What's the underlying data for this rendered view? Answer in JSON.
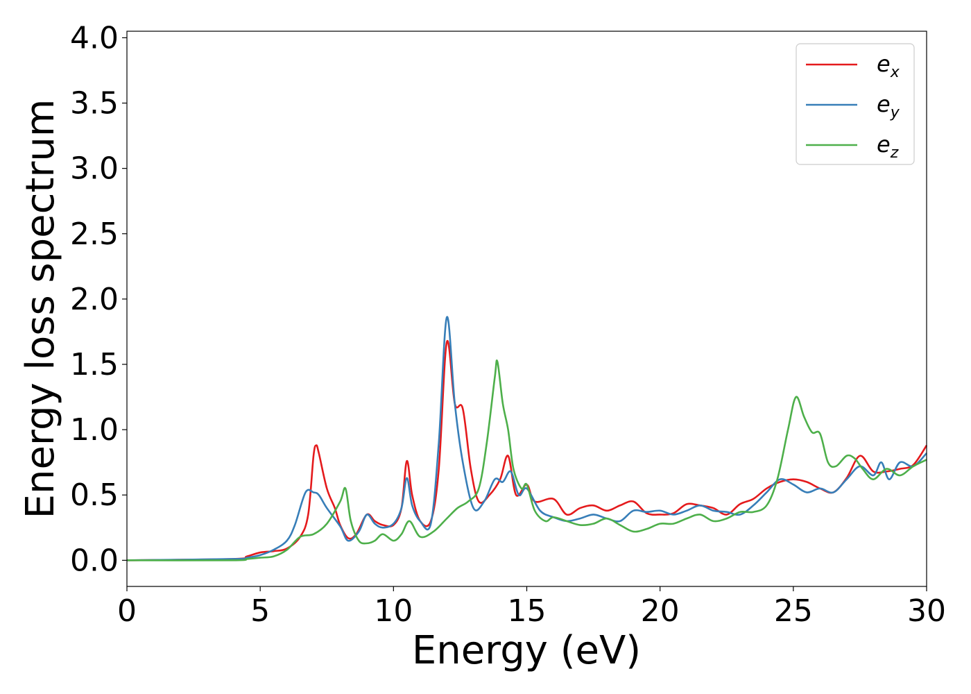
{
  "chart_data": {
    "type": "line",
    "title": "",
    "xlabel": "Energy (eV)",
    "ylabel": "Energy loss spectrum",
    "xlim": [
      0,
      30
    ],
    "ylim": [
      -0.2,
      4.05
    ],
    "xticks": [
      0,
      5,
      10,
      15,
      20,
      25,
      30
    ],
    "xtick_labels": [
      "0",
      "5",
      "10",
      "15",
      "20",
      "25",
      "30"
    ],
    "yticks": [
      0.0,
      0.5,
      1.0,
      1.5,
      2.0,
      2.5,
      3.0,
      3.5,
      4.0
    ],
    "ytick_labels": [
      "0.0",
      "0.5",
      "1.0",
      "1.5",
      "2.0",
      "2.5",
      "3.0",
      "3.5",
      "4.0"
    ],
    "grid": false,
    "legend_position": "top-right",
    "series": [
      {
        "name": "e_x",
        "legend_base": "e",
        "legend_sub": "x",
        "color": "#e41a1c",
        "points": [
          [
            0,
            0
          ],
          [
            4,
            0.01
          ],
          [
            4.5,
            0.03
          ],
          [
            5,
            0.06
          ],
          [
            5.5,
            0.07
          ],
          [
            6,
            0.09
          ],
          [
            6.5,
            0.18
          ],
          [
            6.8,
            0.35
          ],
          [
            7.0,
            0.8
          ],
          [
            7.1,
            0.88
          ],
          [
            7.2,
            0.82
          ],
          [
            7.5,
            0.55
          ],
          [
            7.8,
            0.4
          ],
          [
            8.0,
            0.27
          ],
          [
            8.3,
            0.17
          ],
          [
            8.6,
            0.2
          ],
          [
            9.0,
            0.35
          ],
          [
            9.3,
            0.3
          ],
          [
            9.6,
            0.27
          ],
          [
            10.0,
            0.27
          ],
          [
            10.3,
            0.4
          ],
          [
            10.5,
            0.76
          ],
          [
            10.7,
            0.5
          ],
          [
            11.0,
            0.3
          ],
          [
            11.4,
            0.3
          ],
          [
            11.7,
            0.7
          ],
          [
            12.0,
            1.67
          ],
          [
            12.3,
            1.2
          ],
          [
            12.6,
            1.16
          ],
          [
            12.9,
            0.7
          ],
          [
            13.2,
            0.45
          ],
          [
            13.6,
            0.5
          ],
          [
            14.0,
            0.62
          ],
          [
            14.3,
            0.8
          ],
          [
            14.6,
            0.5
          ],
          [
            15.0,
            0.58
          ],
          [
            15.3,
            0.45
          ],
          [
            16.0,
            0.47
          ],
          [
            16.5,
            0.35
          ],
          [
            17.0,
            0.4
          ],
          [
            17.5,
            0.42
          ],
          [
            18.0,
            0.38
          ],
          [
            18.5,
            0.42
          ],
          [
            19.0,
            0.45
          ],
          [
            19.5,
            0.36
          ],
          [
            20.0,
            0.35
          ],
          [
            20.5,
            0.36
          ],
          [
            21.0,
            0.43
          ],
          [
            21.5,
            0.42
          ],
          [
            22.0,
            0.4
          ],
          [
            22.5,
            0.35
          ],
          [
            23.0,
            0.43
          ],
          [
            23.5,
            0.47
          ],
          [
            24.0,
            0.55
          ],
          [
            24.5,
            0.6
          ],
          [
            25.0,
            0.62
          ],
          [
            25.5,
            0.6
          ],
          [
            26.0,
            0.55
          ],
          [
            26.5,
            0.52
          ],
          [
            27.0,
            0.63
          ],
          [
            27.5,
            0.8
          ],
          [
            28.0,
            0.68
          ],
          [
            28.5,
            0.68
          ],
          [
            29.0,
            0.7
          ],
          [
            29.5,
            0.73
          ],
          [
            30.0,
            0.88
          ]
        ]
      },
      {
        "name": "e_y",
        "legend_base": "e",
        "legend_sub": "y",
        "color": "#377eb8",
        "points": [
          [
            0,
            0
          ],
          [
            4,
            0.01
          ],
          [
            4.5,
            0.02
          ],
          [
            5,
            0.04
          ],
          [
            5.5,
            0.08
          ],
          [
            6,
            0.15
          ],
          [
            6.3,
            0.27
          ],
          [
            6.7,
            0.52
          ],
          [
            7.0,
            0.52
          ],
          [
            7.2,
            0.5
          ],
          [
            7.5,
            0.4
          ],
          [
            8.0,
            0.26
          ],
          [
            8.3,
            0.15
          ],
          [
            8.7,
            0.22
          ],
          [
            9.0,
            0.35
          ],
          [
            9.3,
            0.28
          ],
          [
            9.6,
            0.25
          ],
          [
            10.0,
            0.28
          ],
          [
            10.3,
            0.4
          ],
          [
            10.5,
            0.63
          ],
          [
            10.7,
            0.42
          ],
          [
            11.0,
            0.3
          ],
          [
            11.4,
            0.28
          ],
          [
            11.7,
            0.9
          ],
          [
            12.0,
            1.86
          ],
          [
            12.3,
            1.2
          ],
          [
            12.6,
            0.75
          ],
          [
            13.0,
            0.4
          ],
          [
            13.4,
            0.45
          ],
          [
            13.8,
            0.62
          ],
          [
            14.1,
            0.6
          ],
          [
            14.4,
            0.68
          ],
          [
            14.7,
            0.5
          ],
          [
            15.0,
            0.55
          ],
          [
            15.5,
            0.38
          ],
          [
            16.0,
            0.33
          ],
          [
            16.5,
            0.3
          ],
          [
            17.0,
            0.32
          ],
          [
            17.5,
            0.35
          ],
          [
            18.0,
            0.32
          ],
          [
            18.5,
            0.3
          ],
          [
            19.0,
            0.38
          ],
          [
            19.5,
            0.37
          ],
          [
            20.0,
            0.38
          ],
          [
            20.5,
            0.35
          ],
          [
            21.0,
            0.38
          ],
          [
            21.5,
            0.42
          ],
          [
            22.0,
            0.38
          ],
          [
            22.5,
            0.37
          ],
          [
            23.0,
            0.35
          ],
          [
            23.5,
            0.42
          ],
          [
            24.0,
            0.52
          ],
          [
            24.5,
            0.62
          ],
          [
            25.0,
            0.58
          ],
          [
            25.5,
            0.52
          ],
          [
            26.0,
            0.55
          ],
          [
            26.5,
            0.52
          ],
          [
            27.0,
            0.62
          ],
          [
            27.5,
            0.72
          ],
          [
            28.0,
            0.65
          ],
          [
            28.3,
            0.75
          ],
          [
            28.6,
            0.62
          ],
          [
            29.0,
            0.75
          ],
          [
            29.5,
            0.72
          ],
          [
            30.0,
            0.82
          ]
        ]
      },
      {
        "name": "e_z",
        "legend_base": "e",
        "legend_sub": "z",
        "color": "#4daf4a",
        "points": [
          [
            0,
            0
          ],
          [
            4,
            0.0
          ],
          [
            4.5,
            0.01
          ],
          [
            5,
            0.02
          ],
          [
            5.5,
            0.03
          ],
          [
            6,
            0.08
          ],
          [
            6.5,
            0.18
          ],
          [
            7.0,
            0.2
          ],
          [
            7.5,
            0.28
          ],
          [
            8.0,
            0.45
          ],
          [
            8.2,
            0.55
          ],
          [
            8.4,
            0.3
          ],
          [
            8.7,
            0.15
          ],
          [
            9.0,
            0.13
          ],
          [
            9.3,
            0.15
          ],
          [
            9.6,
            0.2
          ],
          [
            10.0,
            0.15
          ],
          [
            10.3,
            0.2
          ],
          [
            10.6,
            0.3
          ],
          [
            11.0,
            0.18
          ],
          [
            11.5,
            0.22
          ],
          [
            12.0,
            0.32
          ],
          [
            12.4,
            0.4
          ],
          [
            12.8,
            0.45
          ],
          [
            13.2,
            0.55
          ],
          [
            13.5,
            0.9
          ],
          [
            13.8,
            1.4
          ],
          [
            13.9,
            1.52
          ],
          [
            14.1,
            1.2
          ],
          [
            14.3,
            1.0
          ],
          [
            14.5,
            0.7
          ],
          [
            14.8,
            0.55
          ],
          [
            15.0,
            0.58
          ],
          [
            15.3,
            0.38
          ],
          [
            15.7,
            0.3
          ],
          [
            16.0,
            0.33
          ],
          [
            16.5,
            0.3
          ],
          [
            17.0,
            0.27
          ],
          [
            17.5,
            0.28
          ],
          [
            18.0,
            0.32
          ],
          [
            18.5,
            0.27
          ],
          [
            19.0,
            0.22
          ],
          [
            19.5,
            0.24
          ],
          [
            20.0,
            0.28
          ],
          [
            20.5,
            0.28
          ],
          [
            21.0,
            0.32
          ],
          [
            21.5,
            0.35
          ],
          [
            22.0,
            0.3
          ],
          [
            22.5,
            0.32
          ],
          [
            23.0,
            0.37
          ],
          [
            23.5,
            0.37
          ],
          [
            24.0,
            0.42
          ],
          [
            24.4,
            0.62
          ],
          [
            24.8,
            1.0
          ],
          [
            25.1,
            1.25
          ],
          [
            25.4,
            1.1
          ],
          [
            25.7,
            0.98
          ],
          [
            26.0,
            0.97
          ],
          [
            26.3,
            0.75
          ],
          [
            26.6,
            0.72
          ],
          [
            27.0,
            0.8
          ],
          [
            27.3,
            0.78
          ],
          [
            27.6,
            0.7
          ],
          [
            28.0,
            0.62
          ],
          [
            28.5,
            0.7
          ],
          [
            29.0,
            0.65
          ],
          [
            29.5,
            0.72
          ],
          [
            30.0,
            0.77
          ]
        ]
      }
    ]
  }
}
